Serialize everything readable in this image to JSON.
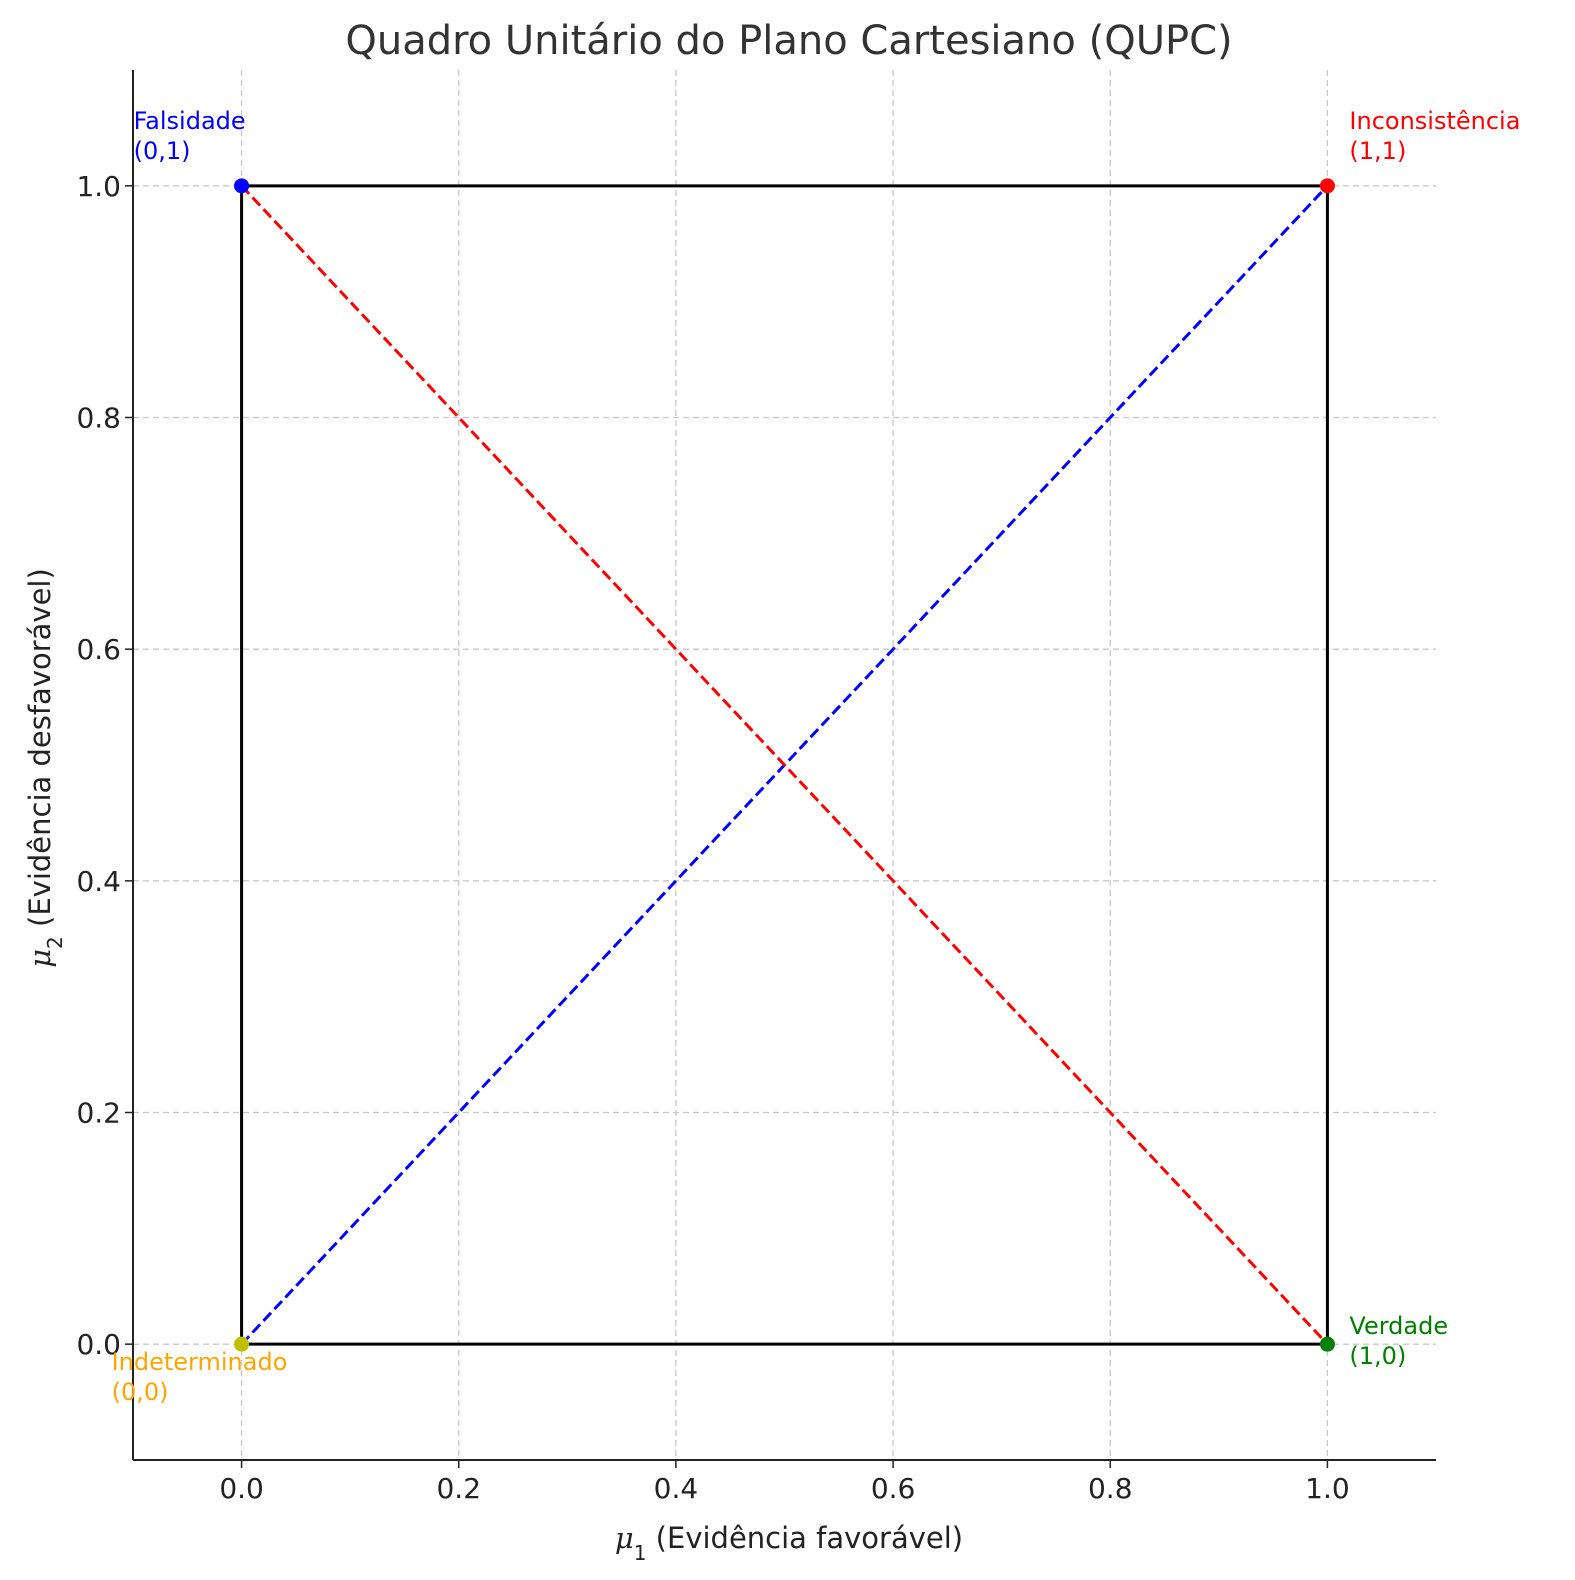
{
  "chart_data": {
    "type": "line",
    "title": "Quadro Unitário do Plano Cartesiano (QUPC)",
    "xlabel": {
      "symbol": "μ",
      "subscript": "1",
      "text": " (Evidência favorável)"
    },
    "ylabel": {
      "symbol": "μ",
      "subscript": "2",
      "text": " (Evidência desfavorável)"
    },
    "xlim": [
      -0.1,
      1.1
    ],
    "ylim": [
      -0.1,
      1.1
    ],
    "xticks": [
      0.0,
      0.2,
      0.4,
      0.6,
      0.8,
      1.0
    ],
    "yticks": [
      0.0,
      0.2,
      0.4,
      0.6,
      0.8,
      1.0
    ],
    "tick_labels": [
      "0.0",
      "0.2",
      "0.4",
      "0.6",
      "0.8",
      "1.0"
    ],
    "grid": true,
    "square": {
      "x": [
        0,
        1,
        1,
        0,
        0
      ],
      "y": [
        0,
        0,
        1,
        1,
        0
      ],
      "color": "#000000"
    },
    "diagonals": [
      {
        "x": [
          0,
          1
        ],
        "y": [
          0,
          1
        ],
        "color": "#0000ff",
        "style": "dashed"
      },
      {
        "x": [
          0,
          1
        ],
        "y": [
          1,
          0
        ],
        "color": "#ff0000",
        "style": "dashed"
      }
    ],
    "points": [
      {
        "x": 1,
        "y": 0,
        "name": "Verdade",
        "coord": "(1,0)",
        "color": "#008000",
        "label_position": "right"
      },
      {
        "x": 0,
        "y": 1,
        "name": "Falsidade",
        "coord": "(0,1)",
        "color": "#0000ff",
        "label_position": "top-left"
      },
      {
        "x": 1,
        "y": 1,
        "name": "Inconsistência",
        "coord": "(1,1)",
        "color": "#ff0000",
        "label_position": "top-right"
      },
      {
        "x": 0,
        "y": 0,
        "name": "Indeterminado",
        "coord": "(0,0)",
        "color": "#ffa500",
        "marker_color": "#bfbf00",
        "label_position": "bottom-left"
      }
    ]
  }
}
